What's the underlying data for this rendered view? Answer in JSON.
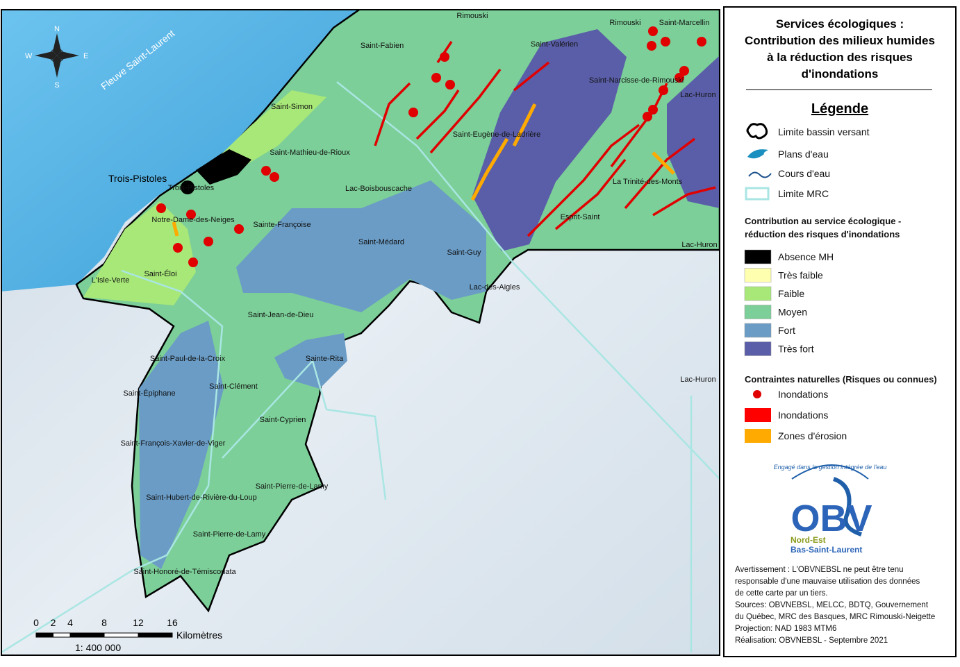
{
  "title": [
    "Services écologiques :",
    "Contribution des milieux humides",
    "à la réduction des risques",
    "d'inondations"
  ],
  "legend": {
    "heading": "Légende",
    "base": [
      "Limite bassin versant",
      "Plans d'eau",
      "Cours d'eau",
      "Limite MRC"
    ],
    "contribution": {
      "heading": [
        "Contribution au service écologique -",
        "réduction des risques d'inondations"
      ],
      "items": [
        {
          "label": "Absence MH",
          "color": "#000000"
        },
        {
          "label": "Très faible",
          "color": "#ffffb0"
        },
        {
          "label": "Faible",
          "color": "#a8e878"
        },
        {
          "label": "Moyen",
          "color": "#7ccf98"
        },
        {
          "label": "Fort",
          "color": "#6a9cc6"
        },
        {
          "label": "Très fort",
          "color": "#5a5ea8"
        }
      ]
    },
    "constraints": {
      "heading": "Contraintes naturelles (Risques ou connues)",
      "items": [
        {
          "label": "Inondations",
          "color": "#e00000"
        },
        {
          "label": "Inondations",
          "color": "#ff0000"
        },
        {
          "label": "Zones d'érosion",
          "color": "#ffaa00"
        }
      ]
    }
  },
  "map": {
    "water_label": "Fleuve Saint-Laurent",
    "city": "Trois-Pistoles",
    "compass": {
      "n": "N",
      "s": "S",
      "e": "E",
      "w": "W"
    },
    "places": [
      "Rimouski",
      "Saint-Fabien",
      "Saint-Valérien",
      "Rimouski",
      "Saint-Marcellin",
      "Saint-Narcisse-de-Rimouski",
      "Lac-Huron",
      "Saint-Simon",
      "Saint-Eugène-de-Ladrière",
      "Saint-Mathieu-de-Rioux",
      "Trois-Pistoles",
      "Lac-Boisbouscache",
      "La Trinité-des-Monts",
      "Notre-Dame-des-Neiges",
      "Sainte-Françoise",
      "Esprit-Saint",
      "Saint-Médard",
      "Lac-Huron",
      "Saint-Guy",
      "L'Isle-Verte",
      "Saint-Éloi",
      "Lac-des-Aigles",
      "Saint-Jean-de-Dieu",
      "Saint-Paul-de-la-Croix",
      "Sainte-Rita",
      "Lac-Huron",
      "Saint-Clément",
      "Saint-Épiphane",
      "Saint-Cyprien",
      "Saint-François-Xavier-de-Viger",
      "Saint-Pierre-de-Lamy",
      "Saint-Hubert-de-Rivière-du-Loup",
      "Saint-Pierre-de-Lamy",
      "Saint-Honoré-de-Témiscouata"
    ],
    "scale": {
      "ticks": [
        0,
        2,
        4,
        8,
        12,
        16
      ],
      "unit": "Kilomètres",
      "ratio": "1: 400 000"
    }
  },
  "logo": {
    "tagline": "Engagé dans la gestion intégrée de l'eau",
    "name": "OBV",
    "sub1": "Nord-Est",
    "sub2": "Bas-Saint-Laurent"
  },
  "notes": [
    "Avertissement : L'OBVNEBSL ne peut être tenu",
    "responsable d'une mauvaise utilisation des données",
    "de cette carte par un tiers.",
    "Sources: OBVNEBSL, MELCC, BDTQ, Gouvernement",
    "du Québec, MRC des Basques, MRC Rimouski-Neigette",
    "Projection: NAD 1983 MTM6",
    "Réalisation: OBVNEBSL - Septembre 2021"
  ]
}
